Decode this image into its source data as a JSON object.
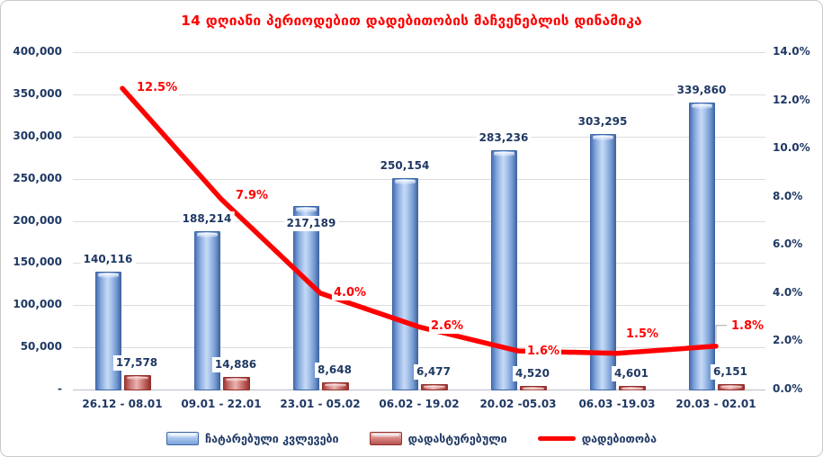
{
  "colors": {
    "title_red": "#ff0000",
    "line_red": "#fe0000",
    "label_navy": "#1f3864",
    "grid_gray": "#dcdcdc",
    "leader_gray": "#a6a6a6",
    "blue_series": "#6d94ce",
    "red_series": "#c0504d"
  },
  "chart_data": {
    "type": "bar",
    "subtype": "combo-bar-line",
    "title": "14 დღიანი პერიოდებით დადებითობის მაჩვენებლის დინამიკა",
    "categories": [
      "26.12 - 08.01",
      "09.01 - 22.01",
      "23.01 - 05.02",
      "06.02 - 19.02",
      "20.02 -05.03",
      "06.03 -19.03",
      "20.03 - 02.01"
    ],
    "series": [
      {
        "name": "ჩატარებული კვლევები",
        "chart_type": "bar",
        "axis": "left",
        "color": "#6d94ce",
        "values": [
          140116,
          188214,
          217189,
          250154,
          283236,
          303295,
          339860
        ],
        "labels": [
          "140,116",
          "188,214",
          "217,189",
          "250,154",
          "283,236",
          "303,295",
          "339,860"
        ]
      },
      {
        "name": "დადასტურებული",
        "chart_type": "bar",
        "axis": "left",
        "color": "#c0504d",
        "values": [
          17578,
          14886,
          8648,
          6477,
          4520,
          4601,
          6151
        ],
        "labels": [
          "17,578",
          "14,886",
          "8,648",
          "6,477",
          "4,520",
          "4,601",
          "6,151"
        ]
      },
      {
        "name": "დადებითობა",
        "chart_type": "line",
        "axis": "right",
        "color": "#fe0000",
        "values": [
          12.5,
          7.9,
          4.0,
          2.6,
          1.6,
          1.5,
          1.8
        ],
        "labels": [
          "12.5%",
          "7.9%",
          "4.0%",
          "2.6%",
          "1.6%",
          "1.5%",
          "1.8%"
        ]
      }
    ],
    "left_axis": {
      "min": 0,
      "max": 400000,
      "step": 50000,
      "ticks": [
        "-",
        "50,000",
        "100,000",
        "150,000",
        "200,000",
        "250,000",
        "300,000",
        "350,000",
        "400,000"
      ]
    },
    "right_axis": {
      "min": 0,
      "max": 14,
      "step": 2,
      "ticks": [
        "0.0%",
        "2.0%",
        "4.0%",
        "6.0%",
        "8.0%",
        "10.0%",
        "12.0%",
        "14.0%"
      ]
    },
    "grid": true,
    "legend_position": "bottom"
  }
}
